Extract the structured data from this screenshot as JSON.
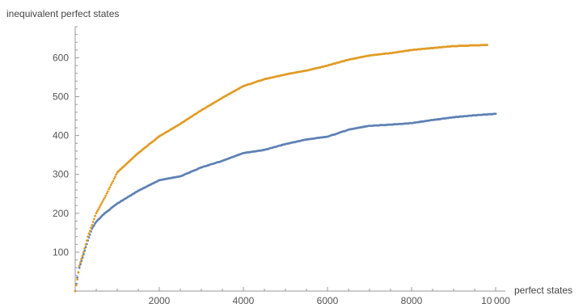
{
  "chart_data": {
    "type": "scatter",
    "xlabel": "perfect states",
    "ylabel": "inequivalent perfect states",
    "xlim": [
      0,
      10000
    ],
    "ylim": [
      0,
      680
    ],
    "x_ticks": [
      2000,
      4000,
      6000,
      8000,
      10000
    ],
    "x_tick_labels": [
      "2000",
      "4000",
      "6000",
      "8000",
      "10 000"
    ],
    "y_ticks": [
      100,
      200,
      300,
      400,
      500,
      600
    ],
    "y_tick_labels": [
      "100",
      "200",
      "300",
      "400",
      "500",
      "600"
    ],
    "grid": false,
    "colors": {
      "blue": "#5e81b5",
      "orange": "#e19c24",
      "axis": "#999999",
      "text": "#555555"
    },
    "series": [
      {
        "color": "#5e81b5",
        "x_start": 0,
        "x_end": 10000,
        "points": [
          [
            0,
            0
          ],
          [
            50,
            35
          ],
          [
            100,
            60
          ],
          [
            200,
            95
          ],
          [
            300,
            130
          ],
          [
            400,
            160
          ],
          [
            500,
            178
          ],
          [
            700,
            200
          ],
          [
            1000,
            225
          ],
          [
            1500,
            258
          ],
          [
            2000,
            285
          ],
          [
            2500,
            295
          ],
          [
            3000,
            318
          ],
          [
            3500,
            335
          ],
          [
            4000,
            355
          ],
          [
            4500,
            363
          ],
          [
            5000,
            378
          ],
          [
            5500,
            390
          ],
          [
            6000,
            397
          ],
          [
            6500,
            415
          ],
          [
            7000,
            425
          ],
          [
            7500,
            428
          ],
          [
            8000,
            432
          ],
          [
            8500,
            440
          ],
          [
            9000,
            447
          ],
          [
            9500,
            452
          ],
          [
            10000,
            456
          ]
        ]
      },
      {
        "color": "#e19c24",
        "x_start": 0,
        "x_end": 9800,
        "points": [
          [
            0,
            0
          ],
          [
            50,
            30
          ],
          [
            100,
            65
          ],
          [
            200,
            100
          ],
          [
            300,
            140
          ],
          [
            400,
            170
          ],
          [
            500,
            200
          ],
          [
            700,
            240
          ],
          [
            1000,
            305
          ],
          [
            1500,
            355
          ],
          [
            2000,
            398
          ],
          [
            2500,
            430
          ],
          [
            3000,
            465
          ],
          [
            3500,
            497
          ],
          [
            4000,
            527
          ],
          [
            4500,
            545
          ],
          [
            5000,
            557
          ],
          [
            5500,
            567
          ],
          [
            6000,
            580
          ],
          [
            6500,
            595
          ],
          [
            7000,
            606
          ],
          [
            7500,
            612
          ],
          [
            8000,
            620
          ],
          [
            8500,
            625
          ],
          [
            9000,
            630
          ],
          [
            9500,
            632
          ],
          [
            9800,
            633
          ]
        ]
      }
    ]
  }
}
